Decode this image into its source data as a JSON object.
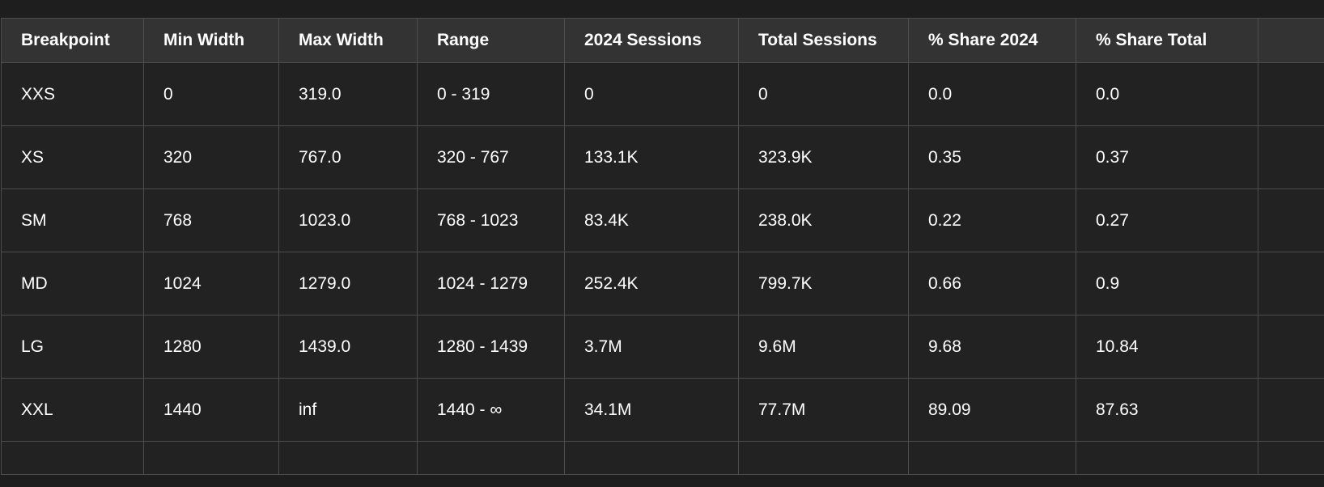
{
  "table": {
    "columns": [
      "Breakpoint",
      "Min Width",
      "Max Width",
      "Range",
      "2024 Sessions",
      "Total Sessions",
      "% Share 2024",
      "% Share Total",
      ""
    ],
    "rows": [
      [
        "XXS",
        "0",
        "319.0",
        "0 - 319",
        "0",
        "0",
        "0.0",
        "0.0",
        ""
      ],
      [
        "XS",
        "320",
        "767.0",
        "320 - 767",
        "133.1K",
        "323.9K",
        "0.35",
        "0.37",
        ""
      ],
      [
        "SM",
        "768",
        "1023.0",
        "768 - 1023",
        "83.4K",
        "238.0K",
        "0.22",
        "0.27",
        ""
      ],
      [
        "MD",
        "1024",
        "1279.0",
        "1024 - 1279",
        "252.4K",
        "799.7K",
        "0.66",
        "0.9",
        ""
      ],
      [
        "LG",
        "1280",
        "1439.0",
        "1280 - 1439",
        "3.7M",
        "9.6M",
        "9.68",
        "10.84",
        ""
      ],
      [
        "XXL",
        "1440",
        "inf",
        "1440 - ∞",
        "34.1M",
        "77.7M",
        "89.09",
        "87.63",
        ""
      ]
    ]
  }
}
